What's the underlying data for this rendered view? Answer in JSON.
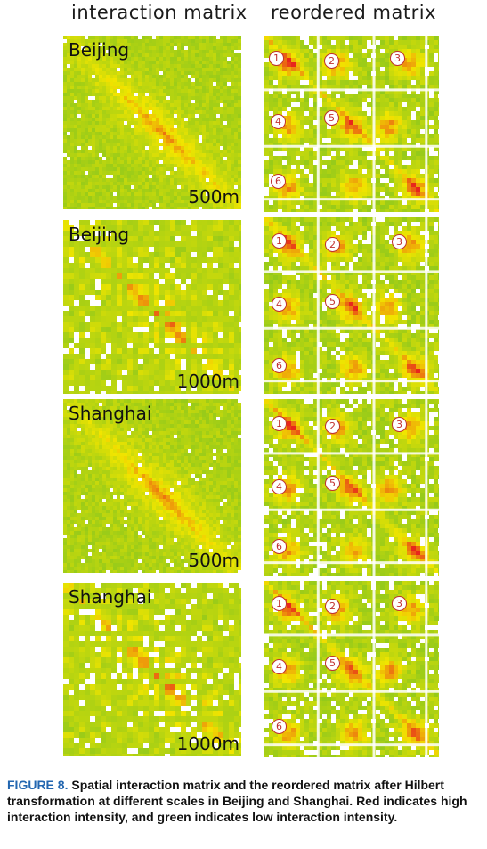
{
  "headers": {
    "left": "interaction matrix",
    "right": "reordered matrix"
  },
  "rows": [
    {
      "city": "Beijing",
      "scale": "500m",
      "markers": [
        "1",
        "2",
        "3",
        "4",
        "5",
        "6"
      ]
    },
    {
      "city": "Beijing",
      "scale": "1000m",
      "markers": [
        "1",
        "2",
        "3",
        "4",
        "5",
        "6"
      ]
    },
    {
      "city": "Shanghai",
      "scale": "500m",
      "markers": [
        "1",
        "2",
        "3",
        "4",
        "5",
        "6"
      ]
    },
    {
      "city": "Shanghai",
      "scale": "1000m",
      "markers": [
        "1",
        "2",
        "3",
        "4",
        "5",
        "6"
      ]
    }
  ],
  "caption": {
    "label": "FIGURE 8.",
    "text": "Spatial interaction matrix and the reordered matrix after Hilbert transformation at different scales in Beijing and Shanghai. Red indicates high interaction intensity, and green indicates low interaction intensity."
  },
  "colors": {
    "low": "#7cc322",
    "mid": "#f2e600",
    "high": "#e8261c",
    "caption_label": "#2266b0"
  }
}
